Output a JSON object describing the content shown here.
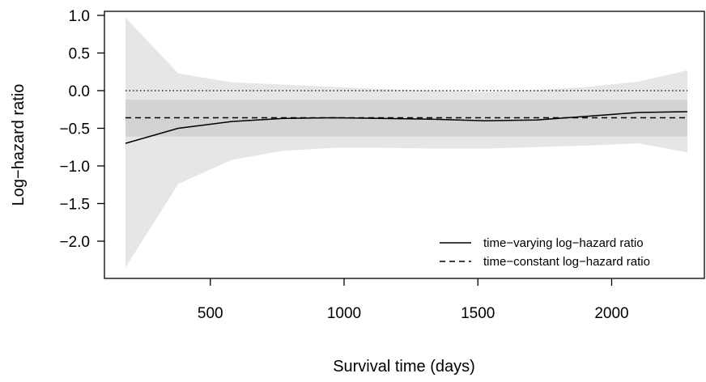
{
  "chart_data": {
    "type": "line",
    "title": "",
    "xlabel": "Survival time (days)",
    "ylabel": "Log−hazard ratio",
    "xlim": [
      183,
      2283
    ],
    "ylim": [
      -2.45,
      1.05
    ],
    "x_ticks": [
      500,
      1000,
      1500,
      2000
    ],
    "y_ticks": [
      1.0,
      0.5,
      0.0,
      -0.5,
      -1.0,
      -1.5,
      -2.0
    ],
    "x_tick_labels": [
      "500",
      "1000",
      "1500",
      "2000"
    ],
    "y_tick_labels": [
      "1.0",
      "0.5",
      "0.0",
      "−0.5",
      "−1.0",
      "−1.5",
      "−2.0"
    ],
    "grid": false,
    "legend_position": "bottom-right",
    "x": [
      183,
      380,
      580,
      770,
      960,
      1150,
      1340,
      1530,
      1720,
      1910,
      2100,
      2283
    ],
    "series": [
      {
        "name": "time−varying log−hazard ratio",
        "style": "solid",
        "values": [
          -0.7,
          -0.5,
          -0.41,
          -0.37,
          -0.36,
          -0.37,
          -0.38,
          -0.4,
          -0.39,
          -0.34,
          -0.29,
          -0.28
        ]
      },
      {
        "name": "time−constant log−hazard ratio",
        "style": "dashed",
        "values": [
          -0.36,
          -0.36,
          -0.36,
          -0.36,
          -0.36,
          -0.36,
          -0.36,
          -0.36,
          -0.36,
          -0.36,
          -0.36,
          -0.36
        ]
      }
    ],
    "reference_line": {
      "y": 0.0,
      "style": "dotted"
    },
    "band_time_varying": {
      "lower": [
        -2.35,
        -1.24,
        -0.92,
        -0.8,
        -0.76,
        -0.76,
        -0.77,
        -0.77,
        -0.75,
        -0.73,
        -0.7,
        -0.82
      ],
      "upper": [
        0.97,
        0.23,
        0.11,
        0.08,
        0.05,
        0.02,
        0.0,
        -0.02,
        0.01,
        0.05,
        0.12,
        0.27
      ],
      "color": "#e6e6e6"
    },
    "band_time_constant": {
      "lower": -0.61,
      "upper": -0.12,
      "color": "#d3d3d3"
    }
  }
}
